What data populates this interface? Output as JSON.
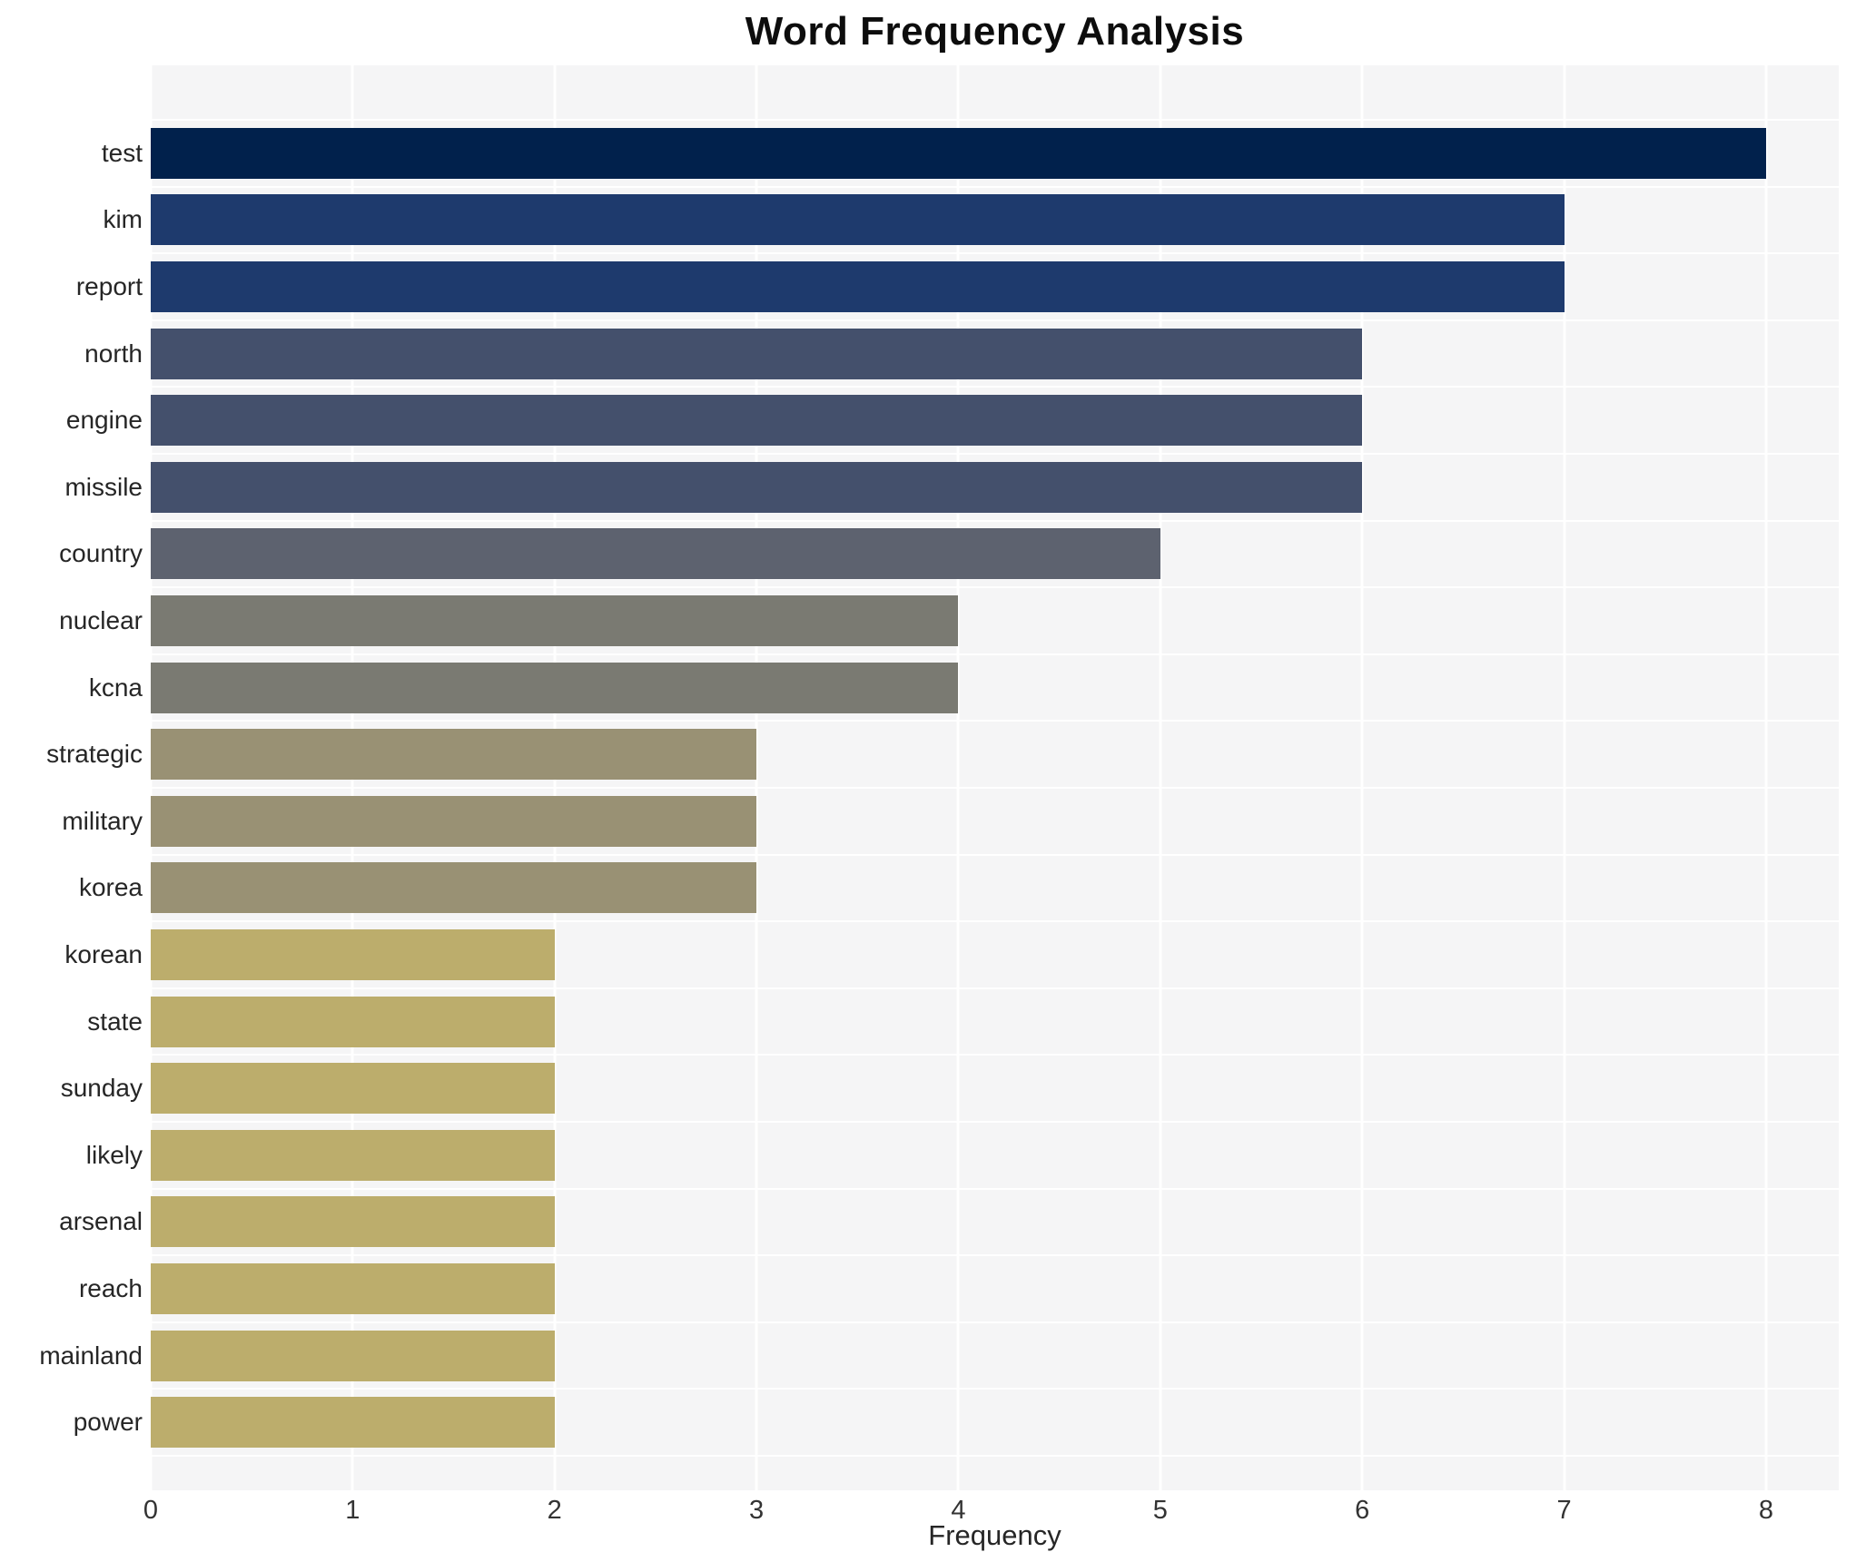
{
  "chart_data": {
    "type": "bar",
    "orientation": "horizontal",
    "title": "Word Frequency Analysis",
    "xlabel": "Frequency",
    "ylabel": "",
    "xlim": [
      0,
      8.36
    ],
    "xticks": [
      0,
      1,
      2,
      3,
      4,
      5,
      6,
      7,
      8
    ],
    "grid": true,
    "legend": false,
    "plot_bg_color": "#f5f5f6",
    "grid_color": "#ffffff",
    "categories": [
      "test",
      "kim",
      "report",
      "north",
      "engine",
      "missile",
      "country",
      "nuclear",
      "kcna",
      "strategic",
      "military",
      "korea",
      "korean",
      "state",
      "sunday",
      "likely",
      "arsenal",
      "reach",
      "mainland",
      "power"
    ],
    "values": [
      8,
      7,
      7,
      6,
      6,
      6,
      5,
      4,
      4,
      3,
      3,
      3,
      2,
      2,
      2,
      2,
      2,
      2,
      2,
      2
    ],
    "bar_colors": [
      "#01214c",
      "#1e3a6d",
      "#1e3a6d",
      "#44506c",
      "#44506c",
      "#44506c",
      "#5d626f",
      "#7a7a72",
      "#7a7a72",
      "#999174",
      "#999174",
      "#999174",
      "#bcad6c",
      "#bcad6c",
      "#bcad6c",
      "#bcad6c",
      "#bcad6c",
      "#bcad6c",
      "#bcad6c",
      "#bcad6c"
    ],
    "value_color_map": {
      "8": "#01214c",
      "7": "#1e3a6d",
      "6": "#44506c",
      "5": "#5d626f",
      "4": "#7a7a72",
      "3": "#999174",
      "2": "#bcad6c"
    }
  }
}
